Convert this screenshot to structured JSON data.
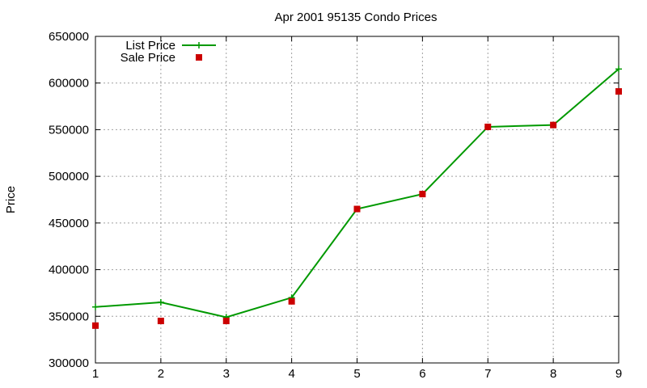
{
  "chart_data": {
    "type": "line",
    "title": "Apr 2001 95135 Condo Prices",
    "xlabel": "",
    "ylabel": "Price",
    "x": [
      1,
      2,
      3,
      4,
      5,
      6,
      7,
      8,
      9
    ],
    "xlim": [
      1,
      9
    ],
    "ylim": [
      300000,
      650000
    ],
    "xticks": [
      "1",
      "2",
      "3",
      "4",
      "5",
      "6",
      "7",
      "8",
      "9"
    ],
    "yticks": [
      "300000",
      "350000",
      "400000",
      "450000",
      "500000",
      "550000",
      "600000",
      "650000"
    ],
    "grid": true,
    "legend_position": "top-left",
    "series": [
      {
        "name": "List Price",
        "style": "line+cross",
        "color": "#009900",
        "values": [
          360000,
          365000,
          349000,
          370000,
          465000,
          481000,
          553000,
          555000,
          615000
        ]
      },
      {
        "name": "Sale Price",
        "style": "square-markers",
        "color": "#cc0000",
        "values": [
          340000,
          345000,
          345000,
          366000,
          465000,
          481000,
          553000,
          555000,
          591000
        ]
      }
    ]
  }
}
